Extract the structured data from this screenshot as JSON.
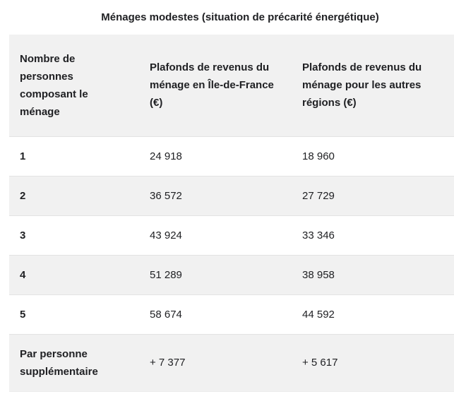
{
  "title": "Ménages modestes (situation de précarité énergétique)",
  "table": {
    "columns": [
      {
        "label": "Nombre de\npersonnes\ncomposant le\nménage"
      },
      {
        "label": "Plafonds de revenus du\nménage en Île-de-France\n(€)"
      },
      {
        "label": "Plafonds de revenus du\nménage pour les autres\nrégions (€)"
      }
    ],
    "rows": [
      {
        "size": "1",
        "idf": "24 918",
        "other": "18 960"
      },
      {
        "size": "2",
        "idf": "36 572",
        "other": "27 729"
      },
      {
        "size": "3",
        "idf": "43 924",
        "other": "33 346"
      },
      {
        "size": "4",
        "idf": "51 289",
        "other": "38 958"
      },
      {
        "size": "5",
        "idf": "58 674",
        "other": "44 592"
      },
      {
        "size": "Par personne\nsupplémentaire",
        "idf": "+ 7 377",
        "other": "+ 5 617"
      }
    ]
  },
  "colors": {
    "header_row_bg": "#f1f1f1",
    "alt_row_bg": "#f1f1f1",
    "row_border": "#e3e3e3",
    "text": "#202124",
    "page_bg": "#ffffff"
  }
}
